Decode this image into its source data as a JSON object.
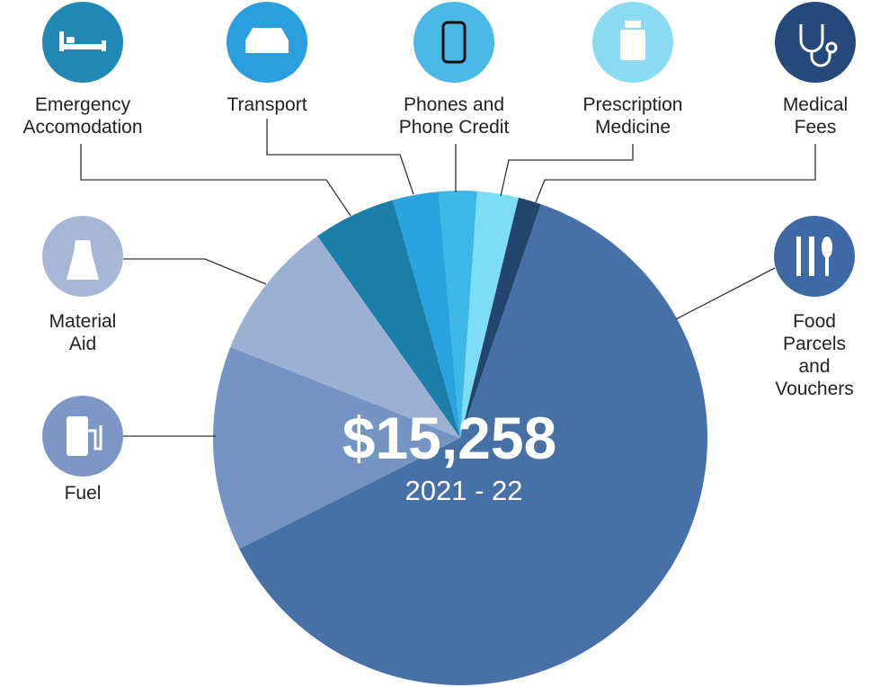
{
  "chart_data": {
    "type": "pie",
    "total": "$15,258",
    "period": "2021 - 22",
    "categories": [
      "Emergency\nAccomodation",
      "Transport",
      "Phones and\nPhone Credit",
      "Prescription\nMedicine",
      "Medical\nFees",
      "Food Parcels\nand Vouchers",
      "Fuel",
      "Material\nAid"
    ],
    "values": [
      5.4,
      3.0,
      2.5,
      2.7,
      1.5,
      62.3,
      13.4,
      9.2
    ],
    "colors": [
      "#1a7fa8",
      "#29a3de",
      "#3cb7e6",
      "#7fdcf5",
      "#23466f",
      "#4670a6",
      "#7494c4",
      "#9bb0d2"
    ]
  }
}
